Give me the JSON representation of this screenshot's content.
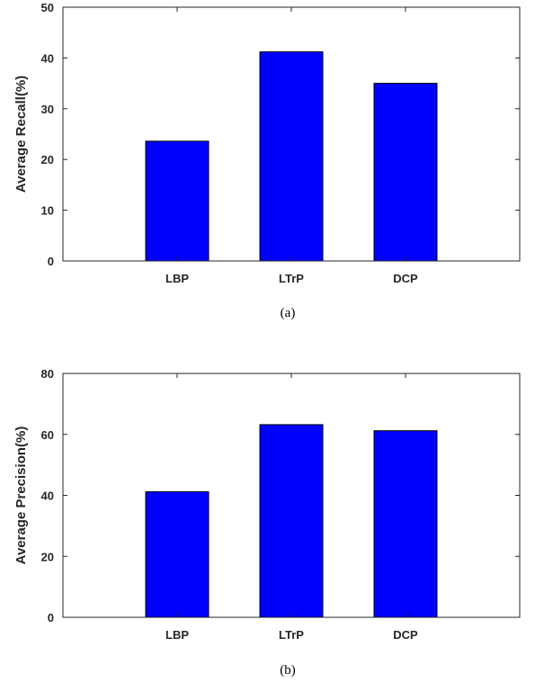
{
  "chart_data": [
    {
      "type": "bar",
      "categories": [
        "LBP",
        "LTrP",
        "DCP"
      ],
      "values": [
        23.6,
        41.2,
        35.0
      ],
      "ylabel": "Average Recall(%)",
      "xlabel": "",
      "ylim": [
        0,
        50
      ],
      "yticks": [
        0,
        10,
        20,
        30,
        40,
        50
      ],
      "caption": "(a)",
      "bar_color": "#0000ff",
      "grid": false
    },
    {
      "type": "bar",
      "categories": [
        "LBP",
        "LTrP",
        "DCP"
      ],
      "values": [
        41.2,
        63.2,
        61.2
      ],
      "ylabel": "Average Precision(%)",
      "xlabel": "",
      "ylim": [
        0,
        80
      ],
      "yticks": [
        0,
        20,
        40,
        60,
        80
      ],
      "caption": "(b)",
      "bar_color": "#0000ff",
      "grid": false
    }
  ]
}
